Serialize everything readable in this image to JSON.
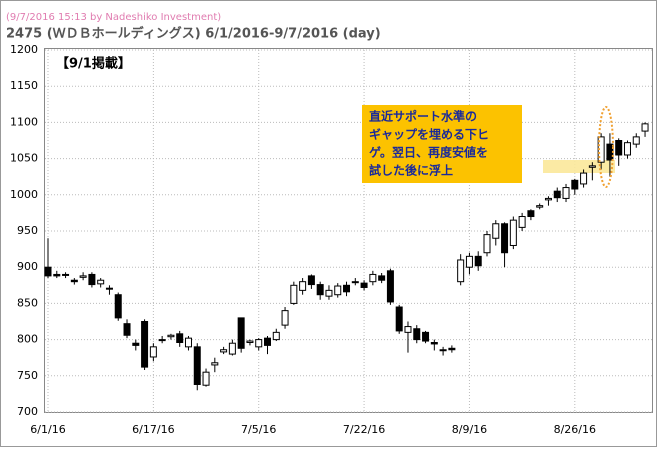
{
  "chart_data": {
    "type": "candlestick",
    "subtitle": "(9/7/2016 15:13 by Nadeshiko Investment)",
    "title": "2475 (ＷＤＢホールディングス)  6/1/2016-9/7/2016 (day)",
    "tag": "【9/1掲載】",
    "annotation": [
      "直近サポート水準の",
      "ギャップを埋める下ヒ",
      "ゲ。翌日、再度安値を",
      "試した後に浮上"
    ],
    "categories": [
      "6/1/16",
      null,
      null,
      null,
      null,
      null,
      null,
      null,
      null,
      null,
      null,
      null,
      "6/17/16",
      null,
      null,
      null,
      null,
      null,
      null,
      null,
      null,
      null,
      null,
      null,
      "7/5/16",
      null,
      null,
      null,
      null,
      null,
      null,
      null,
      null,
      null,
      null,
      null,
      "7/22/16",
      null,
      null,
      null,
      null,
      null,
      null,
      null,
      null,
      null,
      null,
      null,
      "8/9/16",
      null,
      null,
      null,
      null,
      null,
      null,
      null,
      null,
      null,
      null,
      null,
      "8/26/16",
      null,
      null,
      null,
      null,
      null,
      null,
      null,
      null
    ],
    "series": [
      {
        "open": [
          900,
          890,
          890,
          882,
          886,
          890,
          877,
          871,
          862,
          822,
          795,
          825,
          776,
          800,
          804,
          808,
          790,
          790,
          737,
          765,
          783,
          780,
          830,
          796,
          790,
          802,
          800,
          820,
          850,
          868,
          888,
          876,
          860,
          862,
          875,
          879,
          878,
          880,
          888,
          895,
          845,
          810,
          815,
          810,
          796,
          785,
          788,
          880,
          900,
          915,
          920,
          940,
          960,
          930,
          955,
          978,
          983,
          993,
          1005,
          995,
          1020,
          1015,
          1038,
          1045,
          1070,
          1075,
          1055,
          1070,
          1088
        ],
        "high": [
          940,
          895,
          893,
          885,
          893,
          893,
          885,
          875,
          865,
          828,
          800,
          828,
          795,
          805,
          808,
          812,
          805,
          795,
          760,
          775,
          790,
          800,
          830,
          800,
          802,
          805,
          815,
          845,
          880,
          885,
          890,
          880,
          875,
          878,
          880,
          885,
          882,
          895,
          892,
          898,
          848,
          825,
          820,
          812,
          800,
          790,
          792,
          918,
          920,
          922,
          950,
          965,
          962,
          970,
          975,
          980,
          988,
          998,
          1010,
          1015,
          1022,
          1035,
          1045,
          1085,
          1085,
          1078,
          1075,
          1085,
          1100
        ],
        "low": [
          885,
          885,
          885,
          876,
          882,
          872,
          872,
          862,
          826,
          802,
          785,
          758,
          770,
          795,
          800,
          790,
          785,
          730,
          735,
          755,
          780,
          778,
          782,
          792,
          785,
          780,
          798,
          815,
          848,
          862,
          870,
          855,
          855,
          858,
          860,
          875,
          868,
          875,
          878,
          848,
          808,
          782,
          795,
          795,
          785,
          778,
          782,
          875,
          890,
          895,
          915,
          930,
          900,
          925,
          950,
          965,
          980,
          985,
          990,
          990,
          1000,
          1010,
          1020,
          1035,
          1025,
          1040,
          1050,
          1065,
          1080
        ],
        "close": [
          888,
          888,
          890,
          880,
          888,
          876,
          882,
          870,
          830,
          806,
          792,
          762,
          790,
          800,
          806,
          796,
          802,
          738,
          755,
          768,
          786,
          795,
          788,
          798,
          800,
          792,
          810,
          840,
          875,
          880,
          876,
          862,
          868,
          874,
          866,
          880,
          872,
          890,
          882,
          852,
          812,
          818,
          800,
          798,
          794,
          786,
          786,
          910,
          915,
          902,
          945,
          960,
          920,
          965,
          970,
          970,
          985,
          995,
          996,
          1010,
          1008,
          1030,
          1040,
          1080,
          1048,
          1055,
          1072,
          1080,
          1098
        ]
      }
    ],
    "up_color": "#ffffff",
    "down_color": "#000000",
    "ylim": [
      700,
      1200
    ],
    "yticks": [
      700,
      750,
      800,
      850,
      900,
      950,
      1000,
      1050,
      1100,
      1150,
      1200
    ],
    "grid": true
  }
}
